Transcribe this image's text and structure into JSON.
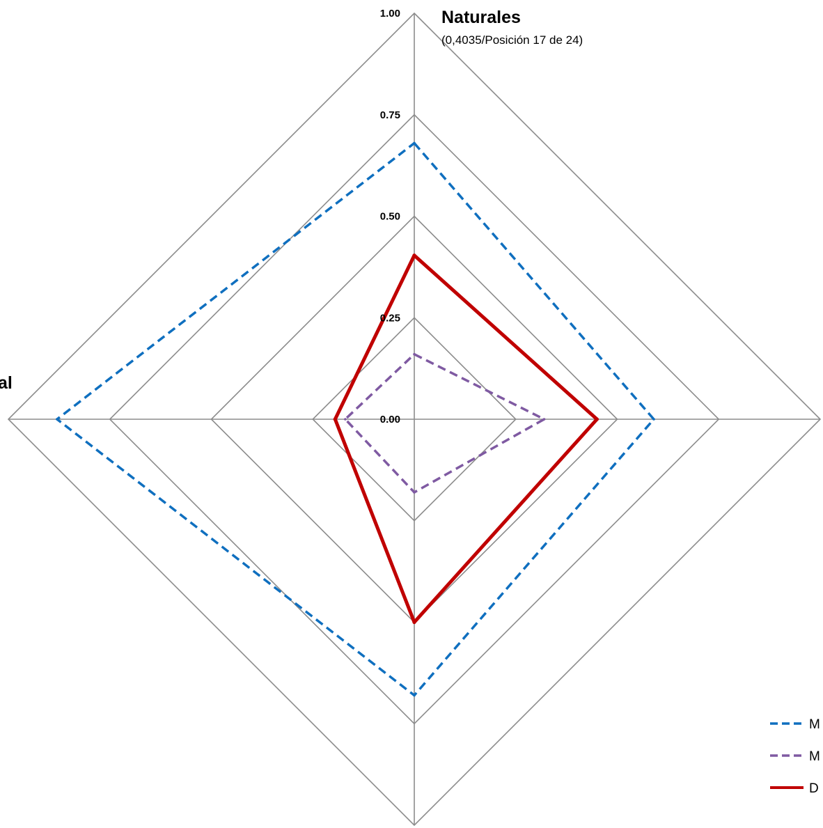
{
  "chart_data": {
    "type": "radar",
    "axes": [
      {
        "title": "Naturales",
        "subtitle": "(0,4035/Posición 17 de 24)"
      },
      {
        "title": "",
        "subtitle": ""
      },
      {
        "title": "",
        "subtitle": ""
      },
      {
        "title": "al",
        "subtitle": ""
      }
    ],
    "radial_ticks": [
      "0.00",
      "0.25",
      "0.50",
      "0.75",
      "1.00"
    ],
    "rlim": [
      0,
      1
    ],
    "series": [
      {
        "name": "M",
        "values": [
          0.68,
          0.59,
          0.68,
          0.88
        ],
        "color": "#0f6fbf",
        "dash": "dashed"
      },
      {
        "name": "M",
        "values": [
          0.16,
          0.32,
          0.18,
          0.17
        ],
        "color": "#7f5aa2",
        "dash": "dashed"
      },
      {
        "name": "D",
        "values": [
          0.4035,
          0.45,
          0.5,
          0.195
        ],
        "color": "#c00000",
        "dash": "solid"
      }
    ],
    "grid": true,
    "legend": "bottom-right"
  }
}
